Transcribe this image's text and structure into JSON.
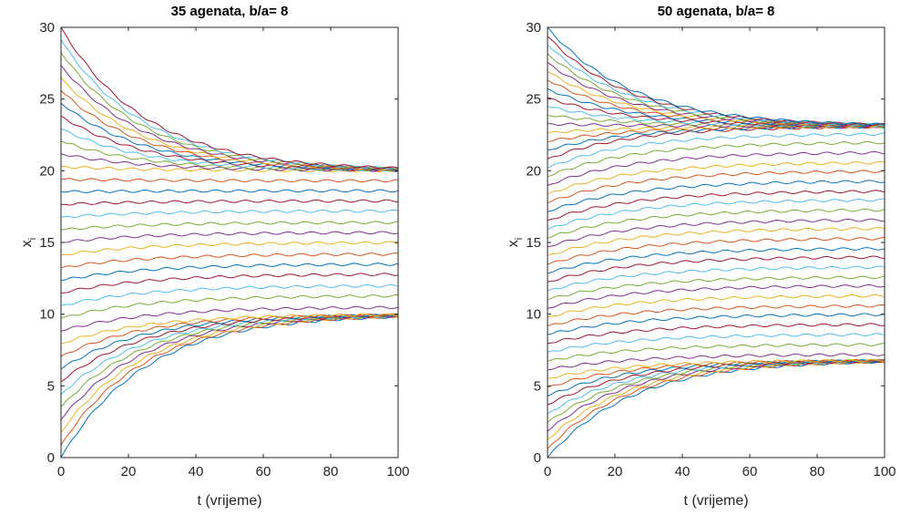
{
  "chart_data": [
    {
      "type": "line",
      "title": "35 agenata, b/a= 8",
      "xlabel": "t (vrijeme)",
      "ylabel": "x",
      "ylabel_sub": "i",
      "xlim": [
        0,
        100
      ],
      "ylim": [
        0,
        30
      ],
      "xticks": [
        "0",
        "20",
        "40",
        "60",
        "80",
        "100"
      ],
      "yticks": [
        "0",
        "5",
        "10",
        "15",
        "20",
        "25",
        "30"
      ],
      "grid": false,
      "legend": "none",
      "n_agents": 35,
      "series_start_values": [
        0.0,
        0.88,
        1.76,
        2.65,
        3.53,
        4.41,
        5.29,
        6.18,
        7.06,
        7.94,
        8.82,
        9.71,
        10.59,
        11.47,
        12.35,
        13.24,
        14.12,
        15.0,
        15.88,
        16.76,
        17.65,
        18.53,
        19.41,
        20.29,
        21.18,
        22.06,
        22.94,
        23.82,
        24.71,
        25.59,
        26.47,
        27.35,
        28.24,
        29.12,
        30.0
      ],
      "series_end_values_t100": [
        10.0,
        10.0,
        10.0,
        10.0,
        10.0,
        10.0,
        10.0,
        10.0,
        10.0,
        10.0,
        10.5,
        11.3,
        12.0,
        12.8,
        13.5,
        14.2,
        15.0,
        15.7,
        16.4,
        17.2,
        17.9,
        18.6,
        19.3,
        20.0,
        20.0,
        20.0,
        20.0,
        20.0,
        20.0,
        20.0,
        20.0,
        20.0,
        20.0,
        20.0,
        20.0
      ]
    },
    {
      "type": "line",
      "title": "50 agenata, b/a= 8",
      "xlabel": "t (vrijeme)",
      "ylabel": "x",
      "ylabel_sub": "i",
      "xlim": [
        0,
        100
      ],
      "ylim": [
        0,
        30
      ],
      "xticks": [
        "0",
        "20",
        "40",
        "60",
        "80",
        "100"
      ],
      "yticks": [
        "0",
        "5",
        "10",
        "15",
        "20",
        "25",
        "30"
      ],
      "grid": false,
      "legend": "none",
      "n_agents": 50,
      "series_start_values": [
        0.0,
        0.61,
        1.22,
        1.84,
        2.45,
        3.06,
        3.67,
        4.29,
        4.9,
        5.51,
        6.12,
        6.73,
        7.35,
        7.96,
        8.57,
        9.18,
        9.8,
        10.41,
        11.02,
        11.63,
        12.24,
        12.86,
        13.47,
        14.08,
        14.69,
        15.31,
        15.92,
        16.53,
        17.14,
        17.76,
        18.37,
        18.98,
        19.59,
        20.2,
        20.82,
        21.43,
        22.04,
        22.65,
        23.27,
        23.88,
        24.49,
        25.1,
        25.71,
        26.33,
        26.94,
        27.55,
        28.16,
        28.78,
        29.39,
        30.0
      ],
      "series_end_values_t100": [
        6.8,
        6.8,
        6.8,
        6.8,
        6.8,
        6.8,
        6.8,
        6.8,
        6.8,
        6.8,
        7.2,
        7.9,
        8.6,
        9.3,
        10.0,
        10.6,
        11.3,
        12.0,
        12.6,
        13.3,
        14.0,
        14.6,
        15.3,
        16.0,
        16.6,
        17.3,
        18.0,
        18.6,
        19.3,
        20.0,
        20.6,
        21.3,
        22.0,
        22.6,
        23.1,
        23.1,
        23.1,
        23.1,
        23.1,
        23.1,
        23.1,
        23.1,
        23.1,
        23.1,
        23.1,
        23.1,
        23.1,
        23.1,
        23.1,
        23.1
      ]
    }
  ],
  "colors": {
    "series_cycle": [
      "#0072BD",
      "#D95319",
      "#EDB120",
      "#7E2F8E",
      "#77AC30",
      "#4DBEEE",
      "#A2142F"
    ],
    "axis": "#262626"
  }
}
